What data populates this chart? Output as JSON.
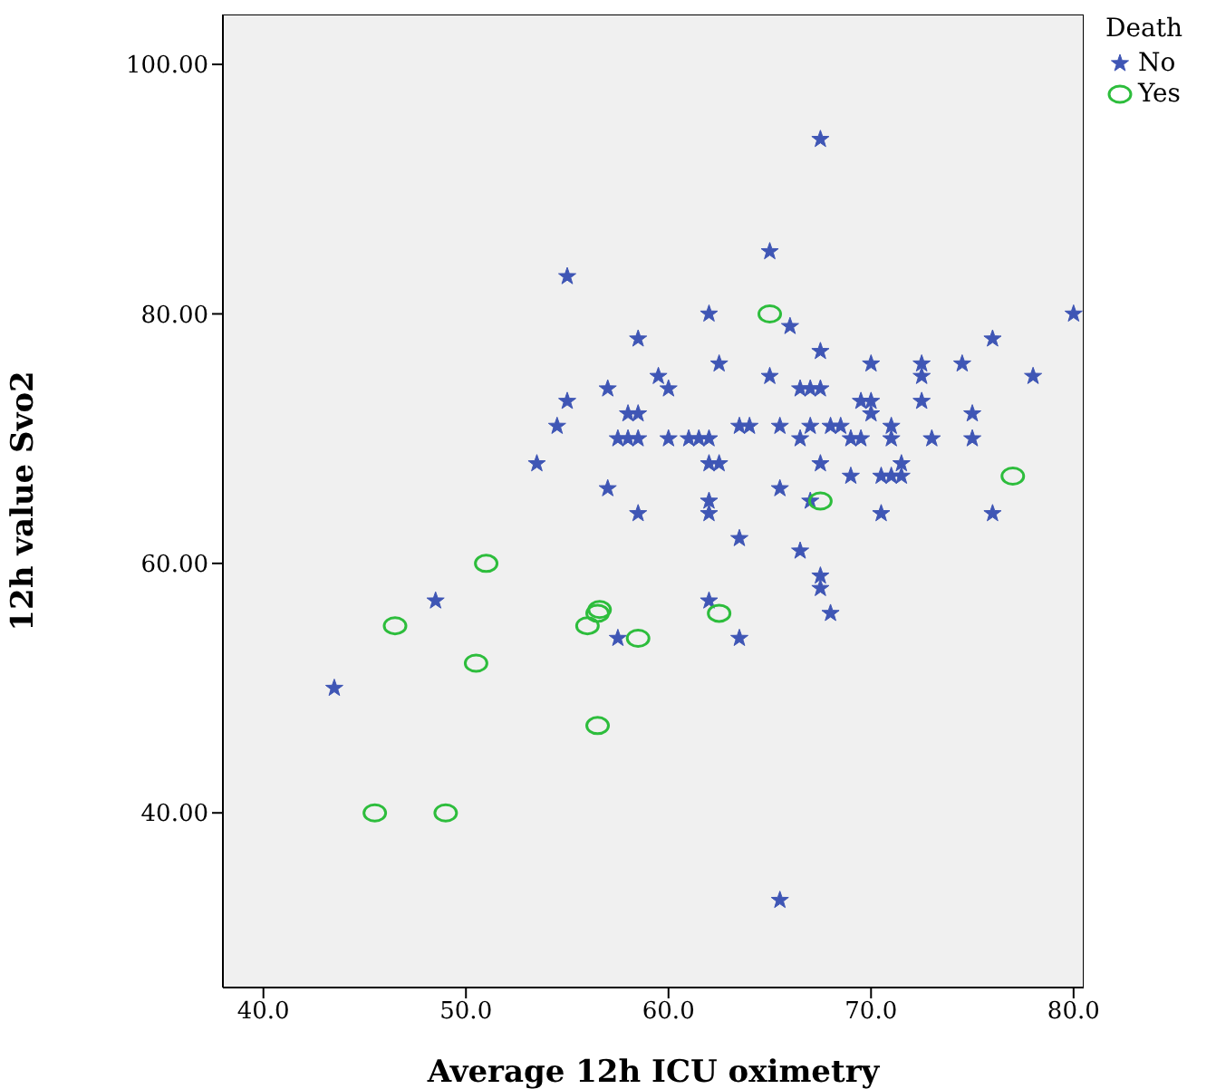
{
  "chart_data": {
    "type": "scatter",
    "xlabel": "Average 12h ICU oximetry",
    "ylabel": "12h value Svo2",
    "legend_title": "Death",
    "legend": "top right",
    "grid": false,
    "xlim": [
      38,
      80.5
    ],
    "xticks": [
      {
        "value": 40,
        "label": "40.0"
      },
      {
        "value": 50,
        "label": "50.0"
      },
      {
        "value": 60,
        "label": "60.0"
      },
      {
        "value": 70,
        "label": "70.0"
      },
      {
        "value": 80,
        "label": "80.0"
      }
    ],
    "ylim": [
      26,
      104
    ],
    "yticks": [
      {
        "value": 40,
        "label": "40.00"
      },
      {
        "value": 60,
        "label": "60.00"
      },
      {
        "value": 80,
        "label": "80.00"
      },
      {
        "value": 100,
        "label": "100.00"
      }
    ],
    "series": [
      {
        "name": "No",
        "color": "#3f56b5",
        "marker": "star",
        "x": [
          43.5,
          48.5,
          55,
          53.5,
          54.5,
          55,
          57,
          57,
          57.5,
          58,
          58,
          58.5,
          58.5,
          58.5,
          58.5,
          57.5,
          59.5,
          60,
          60,
          61,
          61.5,
          62,
          62,
          62,
          62,
          62,
          62,
          62.5,
          62.5,
          63.5,
          64,
          63.5,
          63.5,
          65,
          65,
          65.5,
          65.5,
          65.5,
          66,
          66.5,
          66.5,
          66.5,
          67,
          67,
          67,
          67.5,
          67.5,
          67.5,
          67.5,
          67.5,
          67.5,
          68,
          68,
          68.5,
          69,
          69,
          69.5,
          69.5,
          70,
          70,
          70,
          70.5,
          70.5,
          71,
          71,
          71,
          71.5,
          71.5,
          72.5,
          72.5,
          72.5,
          73,
          74.5,
          75,
          75,
          76,
          76,
          78,
          80
        ],
        "values": [
          50,
          57,
          83,
          68,
          71,
          73,
          74,
          66,
          70,
          70,
          72,
          72,
          70,
          78,
          64,
          54,
          75,
          74,
          70,
          70,
          70,
          70,
          80,
          68,
          65,
          64,
          57,
          76,
          68,
          71,
          71,
          62,
          54,
          85,
          75,
          71,
          66,
          33,
          79,
          74,
          70,
          61,
          74,
          71,
          65,
          94,
          77,
          74,
          68,
          59,
          58,
          56,
          71,
          71,
          67,
          70,
          70,
          73,
          73,
          76,
          72,
          67,
          64,
          71,
          70,
          67,
          68,
          67,
          76,
          75,
          73,
          70,
          76,
          72,
          70,
          78,
          64,
          75,
          80
        ]
      },
      {
        "name": "Yes",
        "color": "#2dbd3c",
        "marker": "circle",
        "x": [
          65,
          51,
          46.5,
          50.5,
          56,
          56.5,
          56.6,
          58.5,
          62.5,
          56.5,
          45.5,
          49,
          67.5,
          77
        ],
        "values": [
          80,
          60,
          55,
          52,
          55,
          56,
          56.3,
          54,
          56,
          47,
          40,
          40,
          65,
          67
        ]
      }
    ]
  }
}
